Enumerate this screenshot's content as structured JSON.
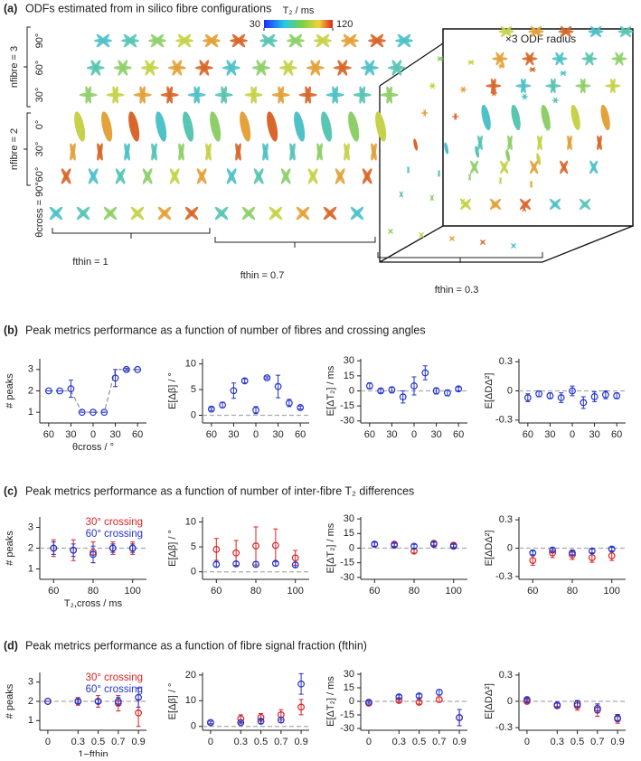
{
  "panels": [
    {
      "label": "(a)",
      "title": "ODFs estimated from in silico fibre configurations"
    },
    {
      "label": "(b)",
      "title": "Peak metrics performance as a function of number of fibres and crossing angles"
    },
    {
      "label": "(c)",
      "title": "Peak metrics performance as a function of number of inter-fibre T₂ differences"
    },
    {
      "label": "(d)",
      "title": "Peak metrics performance as a function of fibre signal fraction (fthin)"
    }
  ],
  "panel_a": {
    "zoom_label": "×3 ODF radius",
    "colorbar": {
      "label": "T₂ / ms",
      "ticks": [
        30,
        120
      ]
    },
    "rows": [
      {
        "group": "nfibre = 3",
        "angles": [
          "90°",
          "60°",
          "30°"
        ]
      },
      {
        "group": "nfibre = 2",
        "angles": [
          "0°",
          "30°",
          "60°"
        ]
      }
    ],
    "bottom_angle": "θcross = 90°",
    "groups": [
      "fthin = 1",
      "fthin = 0.7",
      "fthin = 0.3"
    ]
  },
  "chart_data": [
    {
      "type": "scatter",
      "ylabel": "# peaks",
      "xlabel": "θcross / °",
      "x": [
        -60,
        -45,
        -30,
        -15,
        0,
        15,
        30,
        45,
        60
      ],
      "xlim": [
        -72,
        72
      ],
      "xticks": [
        {
          "value": -60,
          "label": "60"
        },
        {
          "value": -30,
          "label": "30"
        },
        0,
        30,
        60
      ],
      "ylim": [
        0.5,
        3.5
      ],
      "yticks": [
        1,
        2,
        3
      ],
      "series": [
        {
          "color": "#999999",
          "style": "dashed",
          "values": [
            2,
            2,
            2,
            1,
            1,
            1,
            3,
            3,
            3
          ]
        },
        {
          "color": "#2233cc",
          "values": [
            2,
            2,
            2.1,
            1,
            1,
            1,
            2.6,
            3,
            3
          ],
          "errors": [
            0,
            0,
            0.4,
            0,
            0,
            0,
            0.4,
            0.05,
            0
          ]
        }
      ]
    },
    {
      "type": "scatter",
      "ylabel": "E[Δβ] / °",
      "x": [
        -60,
        -45,
        -30,
        -15,
        0,
        15,
        30,
        45,
        60
      ],
      "xlim": [
        -72,
        72
      ],
      "xticks": [
        {
          "value": -60,
          "label": "60"
        },
        {
          "value": -30,
          "label": "30"
        },
        0,
        30,
        60
      ],
      "ylim": [
        -1.5,
        11
      ],
      "yticks": [
        0,
        5,
        10
      ],
      "reference": 0,
      "series": [
        {
          "color": "#2233cc",
          "values": [
            1.2,
            2,
            4.8,
            6.7,
            1,
            7.3,
            5.6,
            2.4,
            1.5
          ],
          "errors": [
            0.3,
            0.5,
            1.5,
            0.4,
            0.7,
            0.2,
            2.2,
            0.7,
            0.3
          ]
        }
      ]
    },
    {
      "type": "scatter",
      "ylabel": "E[ΔT₂] / ms",
      "x": [
        -60,
        -45,
        -30,
        -15,
        0,
        15,
        30,
        45,
        60
      ],
      "xlim": [
        -72,
        72
      ],
      "xticks": [
        {
          "value": -60,
          "label": "60"
        },
        {
          "value": -30,
          "label": "30"
        },
        0,
        30,
        60
      ],
      "ylim": [
        -32,
        32
      ],
      "yticks": [
        -30,
        -15,
        0,
        15,
        30
      ],
      "reference": 0,
      "series": [
        {
          "color": "#2233cc",
          "values": [
            5,
            0,
            1,
            -6,
            5,
            18,
            0,
            -2,
            2
          ],
          "errors": [
            3,
            2,
            3,
            6,
            9,
            7,
            3,
            3,
            2
          ]
        }
      ]
    },
    {
      "type": "scatter",
      "ylabel": "E[ΔDΔ²]",
      "x": [
        -60,
        -45,
        -30,
        -15,
        0,
        15,
        30,
        45,
        60
      ],
      "xlim": [
        -72,
        72
      ],
      "xticks": [
        {
          "value": -60,
          "label": "60"
        },
        {
          "value": -30,
          "label": "30"
        },
        0,
        30,
        60
      ],
      "ylim": [
        -0.33,
        0.33
      ],
      "yticks": [
        -0.3,
        0,
        0.3
      ],
      "reference": 0,
      "series": [
        {
          "color": "#2233cc",
          "values": [
            -0.07,
            -0.03,
            -0.05,
            -0.07,
            0,
            -0.12,
            -0.06,
            -0.04,
            -0.05
          ],
          "errors": [
            0.04,
            0.03,
            0.03,
            0.05,
            0.05,
            0.06,
            0.05,
            0.04,
            0.03
          ]
        }
      ]
    },
    {
      "type": "scatter",
      "ylabel": "# peaks",
      "xlabel": "T₂,cross / ms",
      "x": [
        60,
        70,
        80,
        90,
        100
      ],
      "xlim": [
        53,
        107
      ],
      "xticks": [
        60,
        80,
        100
      ],
      "ylim": [
        0.5,
        3.5
      ],
      "yticks": [
        1,
        2,
        3
      ],
      "reference": 2,
      "legend": "upper right",
      "series": [
        {
          "name": "30° crossing",
          "color": "#dd2222",
          "values": [
            2,
            1.9,
            1.8,
            2,
            2
          ],
          "errors": [
            0.4,
            0.5,
            0.5,
            0.3,
            0.3
          ]
        },
        {
          "name": "60° crossing",
          "color": "#2233cc",
          "values": [
            2,
            1.9,
            1.7,
            2,
            2
          ],
          "errors": [
            0.3,
            0.3,
            0.4,
            0.2,
            0.2
          ]
        }
      ]
    },
    {
      "type": "scatter",
      "ylabel": "E[Δβ] / °",
      "x": [
        60,
        70,
        80,
        90,
        100
      ],
      "xlim": [
        53,
        107
      ],
      "xticks": [
        60,
        80,
        100
      ],
      "ylim": [
        -1.5,
        11
      ],
      "yticks": [
        0,
        5,
        10
      ],
      "reference": 0,
      "series": [
        {
          "color": "#dd2222",
          "values": [
            4.5,
            3.8,
            5.2,
            5.3,
            2.8
          ],
          "errors": [
            2.2,
            2.5,
            3.8,
            3.3,
            1.5
          ]
        },
        {
          "color": "#2233cc",
          "values": [
            1.5,
            1.6,
            1.5,
            1.7,
            1.4
          ],
          "errors": [
            0.5,
            0.5,
            0.5,
            0.5,
            0.5
          ]
        }
      ]
    },
    {
      "type": "scatter",
      "ylabel": "E[ΔT₂] / ms",
      "x": [
        60,
        70,
        80,
        90,
        100
      ],
      "xlim": [
        53,
        107
      ],
      "xticks": [
        60,
        80,
        100
      ],
      "ylim": [
        -32,
        32
      ],
      "yticks": [
        -30,
        -15,
        0,
        15,
        30
      ],
      "reference": 0,
      "series": [
        {
          "color": "#dd2222",
          "values": [
            4,
            4,
            -3,
            5,
            3
          ],
          "errors": [
            2,
            2,
            2,
            2,
            2
          ]
        },
        {
          "color": "#2233cc",
          "values": [
            4,
            3,
            2,
            4,
            2
          ],
          "errors": [
            2,
            2,
            2,
            2,
            2
          ]
        }
      ]
    },
    {
      "type": "scatter",
      "ylabel": "E[ΔDΔ²]",
      "x": [
        60,
        70,
        80,
        90,
        100
      ],
      "xlim": [
        53,
        107
      ],
      "xticks": [
        60,
        80,
        100
      ],
      "ylim": [
        -0.33,
        0.33
      ],
      "yticks": [
        -0.3,
        0,
        0.3
      ],
      "reference": 0,
      "series": [
        {
          "color": "#dd2222",
          "values": [
            -0.13,
            -0.05,
            -0.07,
            -0.1,
            -0.08
          ],
          "errors": [
            0.05,
            0.05,
            0.05,
            0.05,
            0.05
          ]
        },
        {
          "color": "#2233cc",
          "values": [
            -0.05,
            -0.02,
            -0.05,
            -0.03,
            -0.01
          ],
          "errors": [
            0.02,
            0.02,
            0.02,
            0.02,
            0.02
          ]
        }
      ]
    },
    {
      "type": "scatter",
      "ylabel": "# peaks",
      "xlabel": "1−fthin",
      "x": [
        0,
        0.3,
        0.5,
        0.7,
        0.9
      ],
      "xlim": [
        -0.08,
        0.98
      ],
      "xticks": [
        0,
        0.3,
        0.5,
        0.7,
        0.9
      ],
      "ylim": [
        0.5,
        3.5
      ],
      "yticks": [
        1,
        2,
        3
      ],
      "reference": 2,
      "legend": "upper right",
      "series": [
        {
          "name": "30° crossing",
          "color": "#dd2222",
          "values": [
            2,
            2,
            2,
            1.9,
            1.4
          ],
          "errors": [
            0,
            0.2,
            0.3,
            0.4,
            0.7
          ]
        },
        {
          "name": "60° crossing",
          "color": "#2233cc",
          "values": [
            2,
            2,
            2,
            2,
            2.2
          ],
          "errors": [
            0,
            0.1,
            0.1,
            0.2,
            0.5
          ]
        }
      ]
    },
    {
      "type": "scatter",
      "ylabel": "E[Δβ] / °",
      "x": [
        0,
        0.3,
        0.5,
        0.7,
        0.9
      ],
      "xlim": [
        -0.08,
        0.98
      ],
      "xticks": [
        0,
        0.3,
        0.5,
        0.7,
        0.9
      ],
      "ylim": [
        -1.5,
        21
      ],
      "yticks": [
        0,
        10,
        20
      ],
      "reference": 0,
      "series": [
        {
          "color": "#dd2222",
          "values": [
            1.5,
            3,
            3.5,
            4.5,
            7.5
          ],
          "errors": [
            0.5,
            1.5,
            1.5,
            2,
            3
          ]
        },
        {
          "color": "#2233cc",
          "values": [
            1.5,
            1.5,
            2,
            2.5,
            16.5
          ],
          "errors": [
            0.5,
            0.5,
            0.8,
            1,
            4
          ]
        }
      ]
    },
    {
      "type": "scatter",
      "ylabel": "E[ΔT₂] / ms",
      "x": [
        0,
        0.3,
        0.5,
        0.7,
        0.9
      ],
      "xlim": [
        -0.08,
        0.98
      ],
      "xticks": [
        0,
        0.3,
        0.5,
        0.7,
        0.9
      ],
      "ylim": [
        -32,
        32
      ],
      "yticks": [
        -30,
        -15,
        0,
        15,
        30
      ],
      "reference": 0,
      "series": [
        {
          "color": "#dd2222",
          "values": [
            -2,
            1,
            -1,
            2,
            -18
          ],
          "errors": [
            2,
            2,
            2,
            3,
            9
          ]
        },
        {
          "color": "#2233cc",
          "values": [
            -1,
            5,
            6,
            10,
            -18
          ],
          "errors": [
            1,
            2,
            2,
            3,
            9
          ]
        }
      ]
    },
    {
      "type": "scatter",
      "ylabel": "E[ΔDΔ²]",
      "x": [
        0,
        0.3,
        0.5,
        0.7,
        0.9
      ],
      "xlim": [
        -0.08,
        0.98
      ],
      "xticks": [
        0,
        0.3,
        0.5,
        0.7,
        0.9
      ],
      "ylim": [
        -0.33,
        0.33
      ],
      "yticks": [
        -0.3,
        0,
        0.3
      ],
      "reference": 0,
      "series": [
        {
          "color": "#dd2222",
          "values": [
            0,
            -0.05,
            -0.05,
            -0.1,
            -0.2
          ],
          "errors": [
            0.02,
            0.03,
            0.05,
            0.07,
            0.05
          ]
        },
        {
          "color": "#2233cc",
          "values": [
            0.02,
            -0.04,
            -0.03,
            -0.08,
            -0.19
          ],
          "errors": [
            0.02,
            0.02,
            0.04,
            0.05,
            0.04
          ]
        }
      ]
    }
  ]
}
